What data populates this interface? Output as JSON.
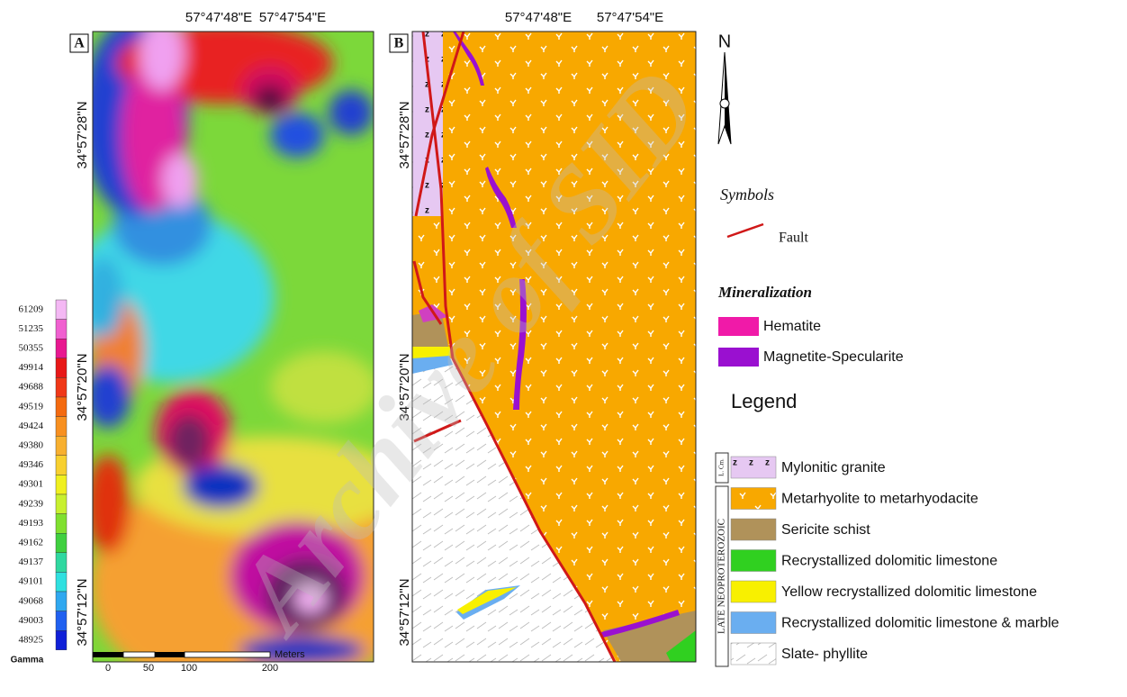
{
  "panel_a": {
    "label": "A",
    "x_ticks": [
      "57°47'48\"E",
      "57°47'54\"E"
    ],
    "y_ticks": [
      "34°57'28\"N",
      "34°57'20\"N",
      "34°57'12\"N"
    ]
  },
  "panel_b": {
    "label": "B",
    "x_ticks": [
      "57°47'48\"E",
      "57°47'54\"E"
    ],
    "y_ticks": [
      "34°57'28\"N",
      "34°57'20\"N",
      "34°57'12\"N"
    ]
  },
  "colorbar": {
    "values": [
      61209,
      51235,
      50355,
      49914,
      49688,
      49519,
      49424,
      49380,
      49346,
      49301,
      49239,
      49193,
      49162,
      49137,
      49101,
      49068,
      49003,
      48925
    ],
    "unit": "Gamma"
  },
  "scale_bar": {
    "ticks": [
      0,
      50,
      100,
      200
    ],
    "unit": "Meters"
  },
  "north": "N",
  "symbols": {
    "title": "Symbols",
    "items": [
      "Fault"
    ]
  },
  "mineralization": {
    "title": "Mineralization",
    "items": [
      "Hematite",
      "Magnetite-Specularite"
    ]
  },
  "legend": {
    "title": "Legend",
    "groups": [
      {
        "label": "L. Cm.",
        "items": [
          "Mylonitic granite"
        ]
      },
      {
        "label": "LATE NEOPROTEROZOIC",
        "items": [
          "Metarhyolite to metarhyodacite",
          "Sericite schist",
          "Recrystallized dolomitic limestone",
          "Yellow recrystallized dolomitic limestone",
          "Recrystallized dolomitic limestone & marble",
          "Slate- phyllite"
        ]
      }
    ]
  },
  "watermark": "Archive of SID"
}
